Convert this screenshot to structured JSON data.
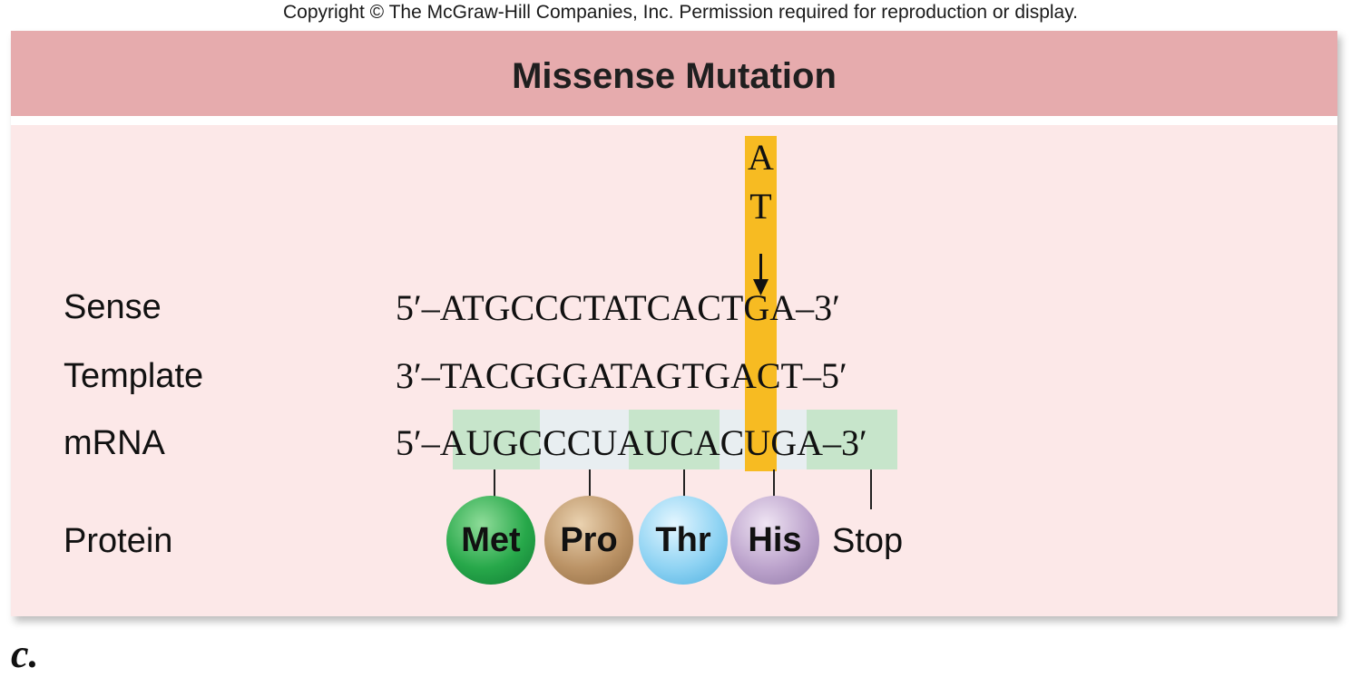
{
  "copyright": "Copyright © The McGraw-Hill Companies, Inc. Permission required for reproduction or display.",
  "title": "Missense Mutation",
  "mutation": {
    "original": "A",
    "replacement": "T"
  },
  "rows": {
    "sense": {
      "label": "Sense",
      "sequence": "5′–ATGCCCTATCACTGA–3′"
    },
    "template": {
      "label": "Template",
      "sequence": "3′–TACGGGATAGTGACT–5′"
    },
    "mrna": {
      "label": "mRNA",
      "sequence": "5′–AUGCCCUAUCACUGA–3′"
    }
  },
  "protein": {
    "label": "Protein",
    "amino_acids": [
      "Met",
      "Pro",
      "Thr",
      "His"
    ],
    "stop": "Stop"
  },
  "panel_letter": "c."
}
